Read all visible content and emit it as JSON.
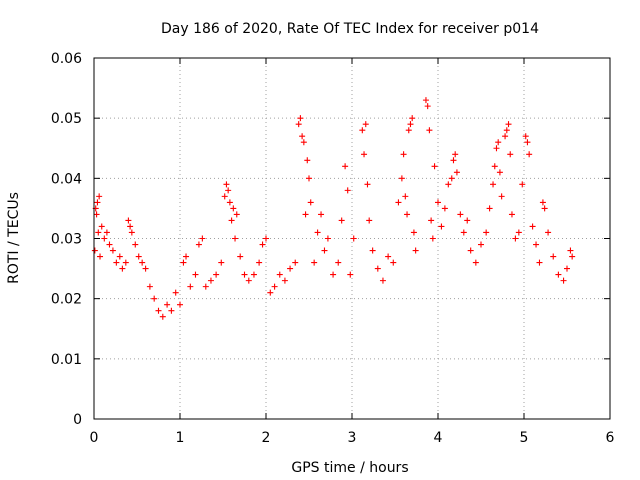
{
  "chart_data": {
    "type": "scatter",
    "title": "Day 186 of 2020, Rate Of TEC Index for receiver p014",
    "xlabel": "GPS time / hours",
    "ylabel": "ROTI / TECUs",
    "xlim": [
      0,
      6
    ],
    "ylim": [
      0,
      0.06
    ],
    "x_ticks": [
      0,
      1,
      2,
      3,
      4,
      5,
      6
    ],
    "x_tick_labels": [
      "0",
      "1",
      "2",
      "3",
      "4",
      "5",
      "6"
    ],
    "y_ticks": [
      0,
      0.01,
      0.02,
      0.03,
      0.04,
      0.05,
      0.06
    ],
    "y_tick_labels": [
      "0",
      "0.01",
      "0.02",
      "0.03",
      "0.04",
      "0.05",
      "0.06"
    ],
    "grid": true,
    "marker": "+",
    "color": "#ff0000",
    "series": [
      {
        "name": "ROTI",
        "points": [
          [
            0.02,
            0.035
          ],
          [
            0.04,
            0.036
          ],
          [
            0.06,
            0.037
          ],
          [
            0.03,
            0.034
          ],
          [
            0.05,
            0.031
          ],
          [
            0.01,
            0.028
          ],
          [
            0.07,
            0.027
          ],
          [
            0.09,
            0.032
          ],
          [
            0.12,
            0.03
          ],
          [
            0.15,
            0.031
          ],
          [
            0.18,
            0.029
          ],
          [
            0.22,
            0.028
          ],
          [
            0.26,
            0.026
          ],
          [
            0.3,
            0.027
          ],
          [
            0.33,
            0.025
          ],
          [
            0.37,
            0.026
          ],
          [
            0.4,
            0.033
          ],
          [
            0.42,
            0.032
          ],
          [
            0.44,
            0.031
          ],
          [
            0.48,
            0.029
          ],
          [
            0.52,
            0.027
          ],
          [
            0.56,
            0.026
          ],
          [
            0.6,
            0.025
          ],
          [
            0.65,
            0.022
          ],
          [
            0.7,
            0.02
          ],
          [
            0.75,
            0.018
          ],
          [
            0.8,
            0.017
          ],
          [
            0.85,
            0.019
          ],
          [
            0.9,
            0.018
          ],
          [
            0.95,
            0.021
          ],
          [
            1.0,
            0.019
          ],
          [
            1.04,
            0.026
          ],
          [
            1.07,
            0.027
          ],
          [
            1.12,
            0.022
          ],
          [
            1.18,
            0.024
          ],
          [
            1.22,
            0.029
          ],
          [
            1.26,
            0.03
          ],
          [
            1.3,
            0.022
          ],
          [
            1.36,
            0.023
          ],
          [
            1.42,
            0.024
          ],
          [
            1.48,
            0.026
          ],
          [
            1.52,
            0.037
          ],
          [
            1.54,
            0.039
          ],
          [
            1.56,
            0.038
          ],
          [
            1.58,
            0.036
          ],
          [
            1.6,
            0.033
          ],
          [
            1.62,
            0.035
          ],
          [
            1.64,
            0.03
          ],
          [
            1.66,
            0.034
          ],
          [
            1.7,
            0.027
          ],
          [
            1.75,
            0.024
          ],
          [
            1.8,
            0.023
          ],
          [
            1.86,
            0.024
          ],
          [
            1.92,
            0.026
          ],
          [
            1.96,
            0.029
          ],
          [
            2.0,
            0.03
          ],
          [
            2.05,
            0.021
          ],
          [
            2.1,
            0.022
          ],
          [
            2.16,
            0.024
          ],
          [
            2.22,
            0.023
          ],
          [
            2.28,
            0.025
          ],
          [
            2.34,
            0.026
          ],
          [
            2.38,
            0.049
          ],
          [
            2.4,
            0.05
          ],
          [
            2.42,
            0.047
          ],
          [
            2.44,
            0.046
          ],
          [
            2.46,
            0.034
          ],
          [
            2.48,
            0.043
          ],
          [
            2.5,
            0.04
          ],
          [
            2.52,
            0.036
          ],
          [
            2.56,
            0.026
          ],
          [
            2.6,
            0.031
          ],
          [
            2.64,
            0.034
          ],
          [
            2.68,
            0.028
          ],
          [
            2.72,
            0.03
          ],
          [
            2.78,
            0.024
          ],
          [
            2.84,
            0.026
          ],
          [
            2.88,
            0.033
          ],
          [
            2.92,
            0.042
          ],
          [
            2.95,
            0.038
          ],
          [
            2.98,
            0.024
          ],
          [
            3.02,
            0.03
          ],
          [
            3.12,
            0.048
          ],
          [
            3.14,
            0.044
          ],
          [
            3.16,
            0.049
          ],
          [
            3.18,
            0.039
          ],
          [
            3.2,
            0.033
          ],
          [
            3.24,
            0.028
          ],
          [
            3.3,
            0.025
          ],
          [
            3.36,
            0.023
          ],
          [
            3.42,
            0.027
          ],
          [
            3.48,
            0.026
          ],
          [
            3.54,
            0.036
          ],
          [
            3.58,
            0.04
          ],
          [
            3.6,
            0.044
          ],
          [
            3.62,
            0.037
          ],
          [
            3.64,
            0.034
          ],
          [
            3.66,
            0.048
          ],
          [
            3.68,
            0.049
          ],
          [
            3.7,
            0.05
          ],
          [
            3.72,
            0.031
          ],
          [
            3.74,
            0.028
          ],
          [
            3.86,
            0.053
          ],
          [
            3.88,
            0.052
          ],
          [
            3.9,
            0.048
          ],
          [
            3.92,
            0.033
          ],
          [
            3.94,
            0.03
          ],
          [
            3.96,
            0.042
          ],
          [
            4.0,
            0.036
          ],
          [
            4.04,
            0.032
          ],
          [
            4.08,
            0.035
          ],
          [
            4.12,
            0.039
          ],
          [
            4.16,
            0.04
          ],
          [
            4.18,
            0.043
          ],
          [
            4.2,
            0.044
          ],
          [
            4.22,
            0.041
          ],
          [
            4.26,
            0.034
          ],
          [
            4.3,
            0.031
          ],
          [
            4.34,
            0.033
          ],
          [
            4.38,
            0.028
          ],
          [
            4.44,
            0.026
          ],
          [
            4.5,
            0.029
          ],
          [
            4.56,
            0.031
          ],
          [
            4.6,
            0.035
          ],
          [
            4.64,
            0.039
          ],
          [
            4.66,
            0.042
          ],
          [
            4.68,
            0.045
          ],
          [
            4.7,
            0.046
          ],
          [
            4.72,
            0.041
          ],
          [
            4.74,
            0.037
          ],
          [
            4.78,
            0.047
          ],
          [
            4.8,
            0.048
          ],
          [
            4.82,
            0.049
          ],
          [
            4.84,
            0.044
          ],
          [
            4.86,
            0.034
          ],
          [
            4.9,
            0.03
          ],
          [
            4.94,
            0.031
          ],
          [
            4.98,
            0.039
          ],
          [
            5.02,
            0.047
          ],
          [
            5.04,
            0.046
          ],
          [
            5.06,
            0.044
          ],
          [
            5.1,
            0.032
          ],
          [
            5.14,
            0.029
          ],
          [
            5.18,
            0.026
          ],
          [
            5.22,
            0.036
          ],
          [
            5.24,
            0.035
          ],
          [
            5.28,
            0.031
          ],
          [
            5.34,
            0.027
          ],
          [
            5.4,
            0.024
          ],
          [
            5.46,
            0.023
          ],
          [
            5.5,
            0.025
          ],
          [
            5.54,
            0.028
          ],
          [
            5.56,
            0.027
          ]
        ]
      }
    ]
  }
}
